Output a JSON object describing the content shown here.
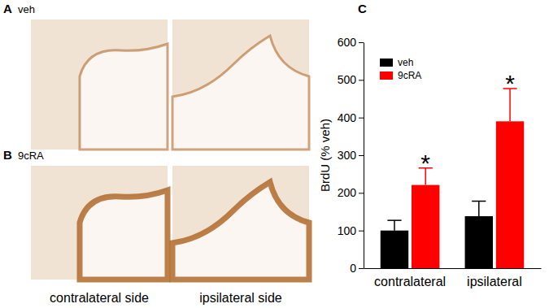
{
  "chart_data": {
    "type": "bar",
    "title": "C",
    "categories": [
      "contralateral",
      "ipsilateral"
    ],
    "series": [
      {
        "name": "veh",
        "color": "#000000",
        "values": [
          100,
          138
        ],
        "errors": [
          27,
          40
        ]
      },
      {
        "name": "9cRA",
        "color": "#ff0000",
        "values": [
          221,
          390
        ],
        "errors": [
          45,
          87
        ],
        "annotations": [
          "*",
          "*"
        ]
      }
    ],
    "y_label": "BrdU (% veh)",
    "ylim": [
      0,
      600
    ],
    "yticks": [
      0,
      100,
      200,
      300,
      400,
      500,
      600
    ],
    "legend": "upper left",
    "grid": false
  },
  "figure": {
    "panels": [
      {
        "label": "A",
        "condition": "veh"
      },
      {
        "label": "B",
        "condition": "9cRA"
      }
    ],
    "columns": [
      "contralateral side",
      "ipsilateral side"
    ]
  }
}
